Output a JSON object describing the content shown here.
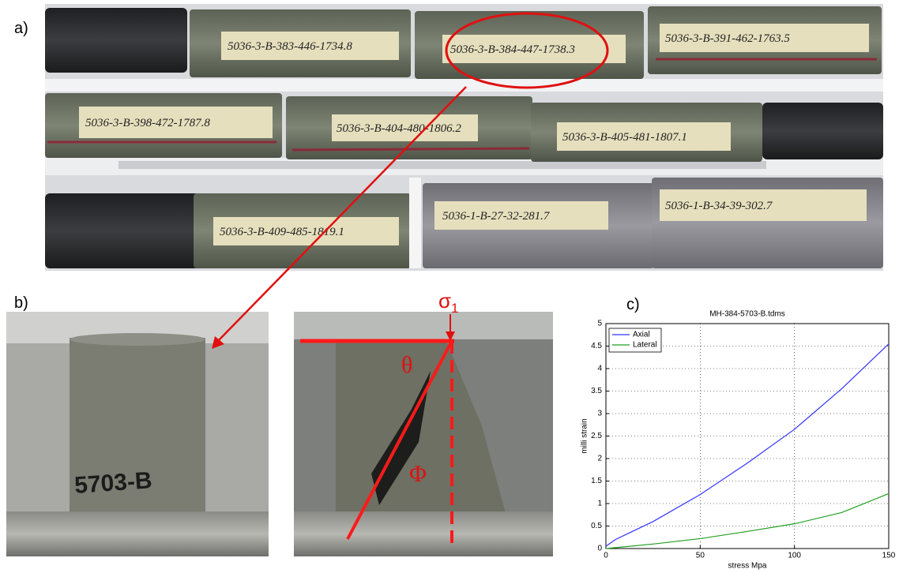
{
  "panels": {
    "a": "a)",
    "b": "b)",
    "c": "c)"
  },
  "photo_a": {
    "labels": [
      "5036-3-B-383-446-1734.8",
      "5036-3-B-384-447-1738.3",
      "5036-3-B-391-462-1763.5",
      "5036-3-B-398-472-1787.8",
      "5036-3-B-404-480-1806.2",
      "5036-3-B-405-481-1807.1",
      "5036-3-B-409-485-1819.1",
      "5036-1-B-27-32-281.7",
      "5036-1-B-34-39-302.7"
    ]
  },
  "photo_b": {
    "sample_label": "5703-B",
    "sigma": "σ",
    "sigma_sub": "1",
    "theta": "θ",
    "phi": "Φ"
  },
  "chart_data": {
    "type": "line",
    "title": "MH-384-5703-B.tdms",
    "xlabel": "stress Mpa",
    "ylabel": "milli strain",
    "x": [
      0,
      5,
      10,
      25,
      50,
      75,
      100,
      125,
      150
    ],
    "series": [
      {
        "name": "Axial",
        "color": "#3333ff",
        "values": [
          0.05,
          0.2,
          0.3,
          0.6,
          1.2,
          1.9,
          2.65,
          3.55,
          4.55
        ]
      },
      {
        "name": "Lateral",
        "color": "#22a022",
        "values": [
          0,
          0.02,
          0.04,
          0.1,
          0.22,
          0.38,
          0.55,
          0.8,
          1.22
        ]
      }
    ],
    "xlim": [
      0,
      150
    ],
    "xticks": [
      0,
      50,
      100,
      150
    ],
    "ylim": [
      0,
      5
    ],
    "yticks": [
      0,
      0.5,
      1,
      1.5,
      2,
      2.5,
      3,
      3.5,
      4,
      4.5,
      5
    ],
    "grid": true,
    "legend": "upper left"
  }
}
